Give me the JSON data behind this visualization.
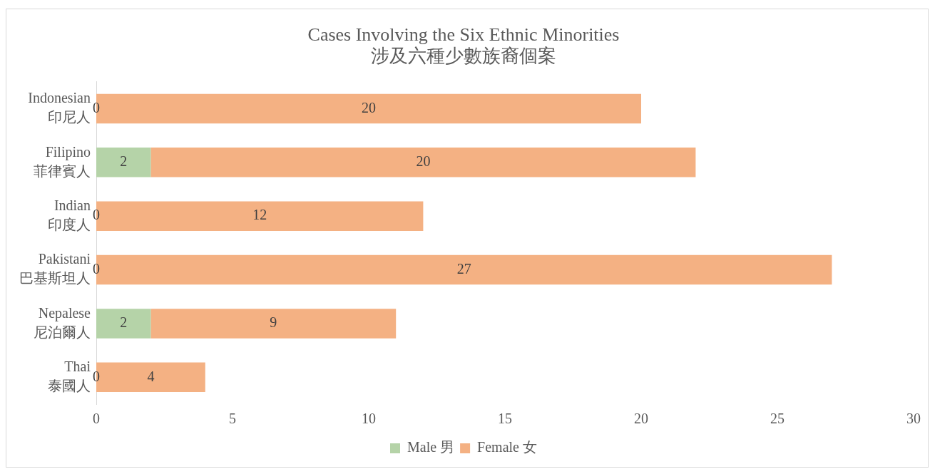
{
  "chart_data": {
    "type": "bar",
    "orientation": "horizontal",
    "stacked": true,
    "title": "Cases Involving the Six Ethnic Minorities",
    "subtitle": "涉及六種少數族裔個案",
    "categories": [
      "Indonesian\n印尼人",
      "Filipino\n菲律賓人",
      "Indian\n印度人",
      "Pakistani\n巴基斯坦人",
      "Nepalese\n尼泊爾人",
      "Thai\n泰國人"
    ],
    "series": [
      {
        "name": "Male 男",
        "color": "#b5d3a8",
        "values": [
          0,
          2,
          0,
          0,
          2,
          0
        ],
        "value_labels": [
          null,
          "2",
          null,
          null,
          "2",
          null
        ]
      },
      {
        "name": "Female 女",
        "color": "#f4b183",
        "values": [
          20,
          20,
          12,
          27,
          9,
          4
        ],
        "value_labels": [
          "20",
          "20",
          "12",
          "27",
          "9",
          "4"
        ]
      }
    ],
    "annotations": [
      {
        "text": "0",
        "y": "Indonesian\n印尼人"
      },
      {
        "text": "0",
        "y": "Indian\n印度人"
      },
      {
        "text": "0",
        "y": "Pakistani\n巴基斯坦人"
      },
      {
        "text": "0",
        "y": "Thai\n泰國人"
      }
    ],
    "xlim": [
      0,
      30
    ],
    "xticks": [
      0,
      5,
      10,
      15,
      20,
      25,
      30
    ],
    "grid": false,
    "legend": "bottom"
  }
}
